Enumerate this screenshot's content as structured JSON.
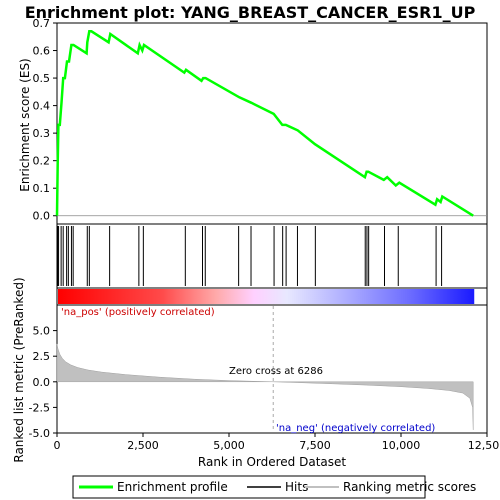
{
  "chart_data": [
    {
      "type": "line",
      "title": "Enrichment plot: YANG_BREAST_CANCER_ESR1_UP",
      "ylabel": "Enrichment score (ES)",
      "ylim": [
        -0.03,
        0.7
      ],
      "yticks": [
        "0.0",
        "0.1",
        "0.2",
        "0.3",
        "0.4",
        "0.5",
        "0.6",
        "0.7"
      ],
      "xlim": [
        0,
        12500
      ],
      "series": [
        {
          "name": "Enrichment profile",
          "color": "#00ff00",
          "x": [
            0,
            20,
            40,
            80,
            130,
            180,
            230,
            290,
            350,
            420,
            480,
            860,
            880,
            940,
            1000,
            1500,
            1550,
            2350,
            2400,
            2480,
            2530,
            3700,
            3750,
            4200,
            4250,
            4320,
            5300,
            5650,
            6300,
            6550,
            6650,
            7000,
            7500,
            8950,
            9000,
            9050,
            9500,
            9600,
            9850,
            9950,
            11000,
            11050,
            11150,
            11200,
            12100
          ],
          "y": [
            0.0,
            0.19,
            0.33,
            0.33,
            0.41,
            0.5,
            0.5,
            0.56,
            0.56,
            0.62,
            0.62,
            0.59,
            0.63,
            0.67,
            0.67,
            0.63,
            0.66,
            0.59,
            0.62,
            0.6,
            0.62,
            0.52,
            0.53,
            0.49,
            0.5,
            0.5,
            0.43,
            0.41,
            0.37,
            0.33,
            0.33,
            0.31,
            0.26,
            0.14,
            0.16,
            0.16,
            0.13,
            0.14,
            0.11,
            0.12,
            0.04,
            0.06,
            0.05,
            0.07,
            0.0
          ]
        }
      ]
    },
    {
      "type": "scatter",
      "name_hits": "Hits",
      "x": [
        15,
        45,
        120,
        180,
        280,
        330,
        420,
        470,
        880,
        940,
        1530,
        2380,
        2510,
        3730,
        4230,
        4310,
        5280,
        5640,
        6310,
        6560,
        6660,
        6990,
        7510,
        8960,
        9010,
        9060,
        9520,
        9920,
        11020,
        11180
      ]
    },
    {
      "type": "area",
      "ylabel": "Ranked list metric (PreRanked)",
      "xlabel": "Rank in Ordered Dataset",
      "ylim": [
        -5.0,
        7.5
      ],
      "yticks": [
        "-5.0",
        "-2.5",
        "0.0",
        "2.5",
        "5.0"
      ],
      "xlim": [
        0,
        12500
      ],
      "xticks": [
        "0",
        "2,500",
        "5,000",
        "7,500",
        "10,000",
        "12,500"
      ],
      "x": [
        0,
        30,
        80,
        150,
        250,
        400,
        600,
        900,
        1300,
        2000,
        3000,
        4000,
        5000,
        6286,
        7000,
        8000,
        9000,
        10000,
        10800,
        11400,
        11800,
        12000,
        12080,
        12100
      ],
      "y": [
        3.7,
        3.2,
        2.7,
        2.3,
        1.95,
        1.65,
        1.4,
        1.15,
        0.95,
        0.7,
        0.45,
        0.25,
        0.12,
        0.0,
        -0.08,
        -0.2,
        -0.32,
        -0.48,
        -0.65,
        -0.85,
        -1.1,
        -1.6,
        -2.5,
        -4.7
      ],
      "zero_cross_label": "Zero cross at 6286",
      "zero_cross_x": 6286,
      "pos_label": "'na_pos' (positively correlated)",
      "neg_label": "'na_neg' (negatively correlated)",
      "pos_color": "#cc0000",
      "neg_color": "#0000cc"
    }
  ],
  "legend": [
    {
      "label": "Enrichment profile"
    },
    {
      "label": "Hits"
    },
    {
      "label": "Ranking metric scores"
    }
  ]
}
